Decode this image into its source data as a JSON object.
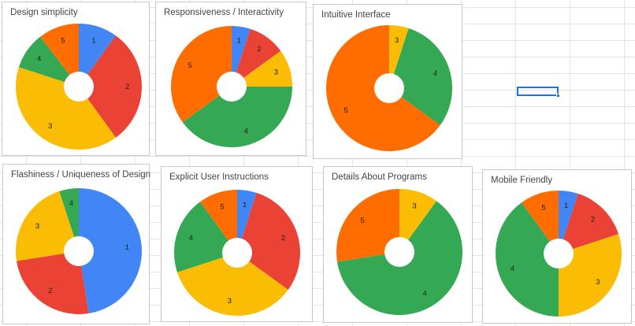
{
  "palette": {
    "1": "#4285f4",
    "2": "#ea4335",
    "3": "#fbbc04",
    "4": "#34a853",
    "5": "#ff6d01"
  },
  "chart_data": [
    {
      "type": "pie",
      "donut": true,
      "title": "Design simplicity",
      "slices": [
        {
          "label": "1",
          "value": 10.0
        },
        {
          "label": "2",
          "value": 30.0
        },
        {
          "label": "3",
          "value": 40.0
        },
        {
          "label": "4",
          "value": 9.5
        },
        {
          "label": "5",
          "value": 10.5
        }
      ]
    },
    {
      "type": "pie",
      "donut": true,
      "title": "Responsiveness / Interactivity",
      "slices": [
        {
          "label": "1",
          "value": 5.0
        },
        {
          "label": "2",
          "value": 10.0
        },
        {
          "label": "3",
          "value": 10.0
        },
        {
          "label": "4",
          "value": 40.0
        },
        {
          "label": "5",
          "value": 35.0
        }
      ]
    },
    {
      "type": "pie",
      "donut": true,
      "title": "Intuitive Interface",
      "slices": [
        {
          "label": "3",
          "value": 5.0
        },
        {
          "label": "4",
          "value": 30.0
        },
        {
          "label": "5",
          "value": 65.0
        }
      ]
    },
    {
      "type": "pie",
      "donut": true,
      "title": "Flashiness / Uniqueness of Design",
      "slices": [
        {
          "label": "1",
          "value": 47.5
        },
        {
          "label": "2",
          "value": 25.0
        },
        {
          "label": "3",
          "value": 22.5
        },
        {
          "label": "4",
          "value": 5.0
        }
      ]
    },
    {
      "type": "pie",
      "donut": true,
      "title": "Explicit User Instructions",
      "slices": [
        {
          "label": "1",
          "value": 5.0
        },
        {
          "label": "2",
          "value": 30.0
        },
        {
          "label": "3",
          "value": 35.0
        },
        {
          "label": "4",
          "value": 20.0
        },
        {
          "label": "5",
          "value": 10.0
        }
      ]
    },
    {
      "type": "pie",
      "donut": true,
      "title": "Details About Programs",
      "slices": [
        {
          "label": "3",
          "value": 10.0
        },
        {
          "label": "4",
          "value": 62.5
        },
        {
          "label": "5",
          "value": 27.5
        }
      ]
    },
    {
      "type": "pie",
      "donut": true,
      "title": "Mobile Friendly",
      "slices": [
        {
          "label": "1",
          "value": 5.0
        },
        {
          "label": "2",
          "value": 15.0
        },
        {
          "label": "3",
          "value": 30.0
        },
        {
          "label": "4",
          "value": 40.0
        },
        {
          "label": "5",
          "value": 10.0
        }
      ]
    }
  ]
}
